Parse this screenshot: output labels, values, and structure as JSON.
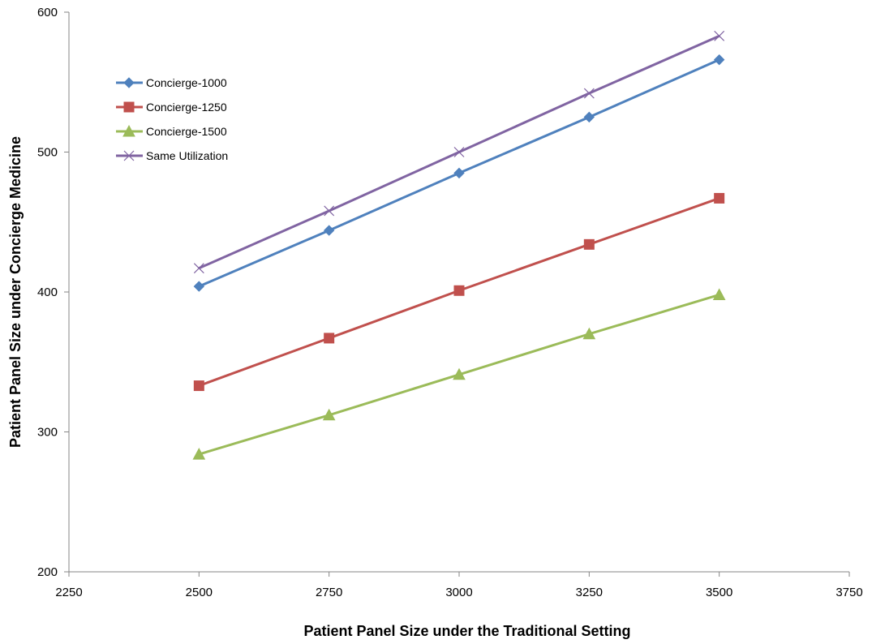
{
  "chart_data": {
    "type": "line",
    "title": "",
    "xlabel": "Patient Panel Size under the Traditional Setting",
    "ylabel": "Patient Panel Size under Concierge Medicine",
    "xlim": [
      2250,
      3750
    ],
    "ylim": [
      200,
      600
    ],
    "xticks": [
      2250,
      2500,
      2750,
      3000,
      3250,
      3500,
      3750
    ],
    "yticks": [
      200,
      300,
      400,
      500,
      600
    ],
    "x": [
      2500,
      2750,
      3000,
      3250,
      3500
    ],
    "grid": false,
    "legend_position": "top-left",
    "series": [
      {
        "name": "Concierge-1000",
        "color": "#4F81BD",
        "marker": "diamond",
        "values": [
          404,
          444,
          485,
          525,
          566
        ]
      },
      {
        "name": "Concierge-1250",
        "color": "#C0504D",
        "marker": "square",
        "values": [
          333,
          367,
          401,
          434,
          467
        ]
      },
      {
        "name": "Concierge-1500",
        "color": "#9BBB59",
        "marker": "triangle",
        "values": [
          284,
          312,
          341,
          370,
          398
        ]
      },
      {
        "name": "Same Utilization",
        "color": "#8064A2",
        "marker": "x",
        "values": [
          417,
          458,
          500,
          542,
          583
        ]
      }
    ]
  }
}
